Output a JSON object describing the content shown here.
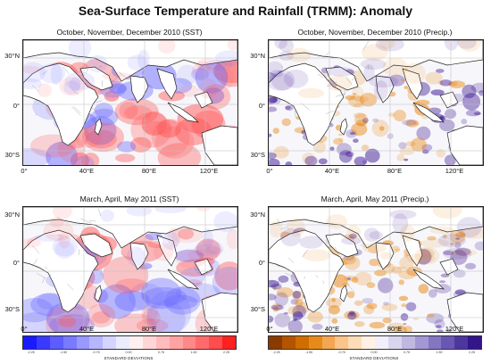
{
  "title": "Sea-Surface Temperature and Rainfall (TRMM): Anomaly",
  "panels": [
    {
      "title": "October, November, December 2010 (SST)",
      "kind": "sst"
    },
    {
      "title": "October, November, December 2010 (Precip.)",
      "kind": "precip"
    },
    {
      "title": "March, April, May 2011 (SST)",
      "kind": "sst"
    },
    {
      "title": "March, April, May 2011 (Precip.)",
      "kind": "precip"
    }
  ],
  "axes": {
    "lat_ticks": [
      "30°N",
      "0°",
      "30°S"
    ],
    "lon_ticks": [
      "0°",
      "40°E",
      "80°E",
      "120°E"
    ]
  },
  "colorbars": [
    {
      "colors": [
        "#1a1aff",
        "#3a3aff",
        "#5c5cff",
        "#7a7aff",
        "#9898ff",
        "#b6b6ff",
        "#d4d4ff",
        "#ececff",
        "#fff0f0",
        "#ffd6d6",
        "#ffbcbc",
        "#ffa2a2",
        "#ff8888",
        "#ff6b6b",
        "#ff4d4d",
        "#ff2020"
      ],
      "ticks": [
        "-2.25",
        "-1.50",
        "-0.75",
        "0.00",
        "0.75",
        "1.50",
        "2.25"
      ],
      "tick_values": [
        -2.25,
        -1.5,
        -0.75,
        0,
        0.75,
        1.5,
        2.25
      ],
      "label": "STANDARD DEVIATIONS"
    },
    {
      "colors": [
        "#8b3a00",
        "#b35400",
        "#d06c00",
        "#e88a1a",
        "#f5a650",
        "#fac48a",
        "#fddcb8",
        "#fff2e4",
        "#f1effa",
        "#dad5ee",
        "#c0b8e2",
        "#a398d4",
        "#8576c4",
        "#6a57b3",
        "#4e36a0",
        "#32168a"
      ],
      "ticks": [
        "-2.25",
        "-1.50",
        "-0.75",
        "0.00",
        "0.75",
        "1.50",
        "2.25"
      ],
      "tick_values": [
        -2.25,
        -1.5,
        -0.75,
        0,
        0.75,
        1.5,
        2.25
      ],
      "label": "STANDARD DEVIATIONS"
    }
  ],
  "palette": {
    "sst_warm": "#ff5a5a",
    "sst_cool": "#6f6fff",
    "precip_dry": "#e8860e",
    "precip_wet": "#3a1390",
    "coast": "#222222",
    "grid": "#bdbdbd"
  }
}
